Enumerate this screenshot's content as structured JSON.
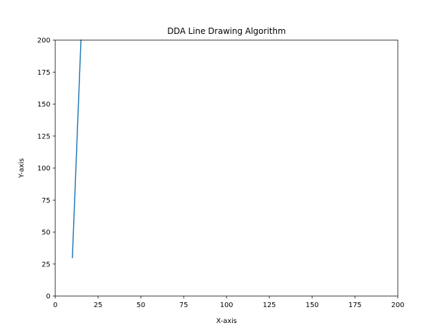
{
  "chart_data": {
    "type": "line",
    "title": "DDA Line Drawing Algorithm",
    "xlabel": "X-axis",
    "ylabel": "Y-axis",
    "xlim": [
      0,
      200
    ],
    "ylim": [
      0,
      200
    ],
    "xticks": [
      "0",
      "25",
      "50",
      "75",
      "100",
      "125",
      "150",
      "175",
      "200"
    ],
    "yticks": [
      "0",
      "25",
      "50",
      "75",
      "100",
      "125",
      "150",
      "175",
      "200"
    ],
    "grid": false,
    "legend": "none",
    "series": [
      {
        "color": "#1f77b4",
        "x": [
          10,
          15
        ],
        "y": [
          30,
          200
        ]
      }
    ]
  }
}
